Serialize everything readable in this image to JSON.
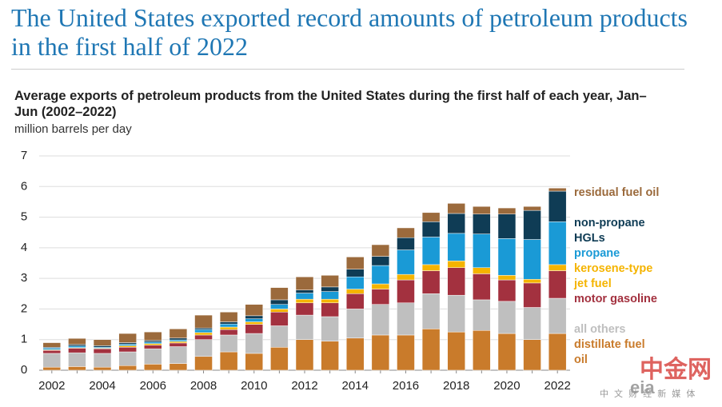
{
  "chart_data": {
    "type": "stacked_bar",
    "title": "The United States exported record amounts of petroleum products in the first half of 2022",
    "subtitle": "Average exports of petroleum products from the United States during the first half of each year, Jan–Jun (2002–2022)",
    "y_label": "million barrels per day",
    "watermark": "中金网",
    "watermark_sub": "中 文 财 经 新 媒 体",
    "logo": "eia",
    "categories": [
      "2002",
      null,
      "2004",
      null,
      "2006",
      null,
      "2008",
      null,
      "2010",
      null,
      "2012",
      null,
      "2014",
      null,
      "2016",
      null,
      "2018",
      null,
      "2020",
      null,
      "2022"
    ],
    "ylim": [
      0,
      7
    ],
    "yticks": [
      0,
      1,
      2,
      3,
      4,
      5,
      6,
      7
    ],
    "grid": true,
    "series": [
      {
        "name": "distillate fuel oil",
        "color": "#c97b2b",
        "values": [
          0.1,
          0.12,
          0.1,
          0.15,
          0.2,
          0.22,
          0.45,
          0.6,
          0.55,
          0.75,
          1.0,
          0.95,
          1.05,
          1.15,
          1.15,
          1.35,
          1.25,
          1.3,
          1.2,
          1.0,
          1.2
        ]
      },
      {
        "name": "all others",
        "color": "#bfbfbf",
        "values": [
          0.45,
          0.45,
          0.45,
          0.45,
          0.5,
          0.55,
          0.55,
          0.55,
          0.65,
          0.7,
          0.8,
          0.8,
          0.95,
          1.0,
          1.05,
          1.15,
          1.2,
          1.0,
          1.05,
          1.05,
          1.15
        ]
      },
      {
        "name": "motor gasoline",
        "color": "#a3313f",
        "values": [
          0.1,
          0.15,
          0.15,
          0.15,
          0.12,
          0.12,
          0.15,
          0.18,
          0.3,
          0.45,
          0.4,
          0.45,
          0.5,
          0.5,
          0.75,
          0.75,
          0.9,
          0.85,
          0.7,
          0.8,
          0.9
        ]
      },
      {
        "name": "kerosene-type jet fuel",
        "color": "#f5b400",
        "values": [
          0.02,
          0.02,
          0.02,
          0.05,
          0.05,
          0.05,
          0.08,
          0.08,
          0.08,
          0.1,
          0.12,
          0.12,
          0.15,
          0.17,
          0.18,
          0.2,
          0.22,
          0.2,
          0.15,
          0.12,
          0.2
        ]
      },
      {
        "name": "propane",
        "color": "#1a9ad6",
        "values": [
          0.05,
          0.05,
          0.03,
          0.05,
          0.05,
          0.05,
          0.1,
          0.1,
          0.1,
          0.15,
          0.2,
          0.25,
          0.4,
          0.6,
          0.8,
          0.9,
          0.9,
          1.1,
          1.2,
          1.3,
          1.4
        ]
      },
      {
        "name": "non-propane HGLs",
        "color": "#0f3c55",
        "values": [
          0.03,
          0.05,
          0.05,
          0.05,
          0.05,
          0.06,
          0.05,
          0.07,
          0.1,
          0.15,
          0.1,
          0.15,
          0.25,
          0.3,
          0.4,
          0.5,
          0.65,
          0.65,
          0.8,
          0.95,
          1.0
        ]
      },
      {
        "name": "residual fuel oil",
        "color": "#9b6a3c",
        "values": [
          0.15,
          0.2,
          0.2,
          0.3,
          0.28,
          0.3,
          0.42,
          0.32,
          0.37,
          0.4,
          0.43,
          0.38,
          0.4,
          0.38,
          0.32,
          0.3,
          0.33,
          0.25,
          0.2,
          0.13,
          0.1
        ]
      }
    ]
  }
}
